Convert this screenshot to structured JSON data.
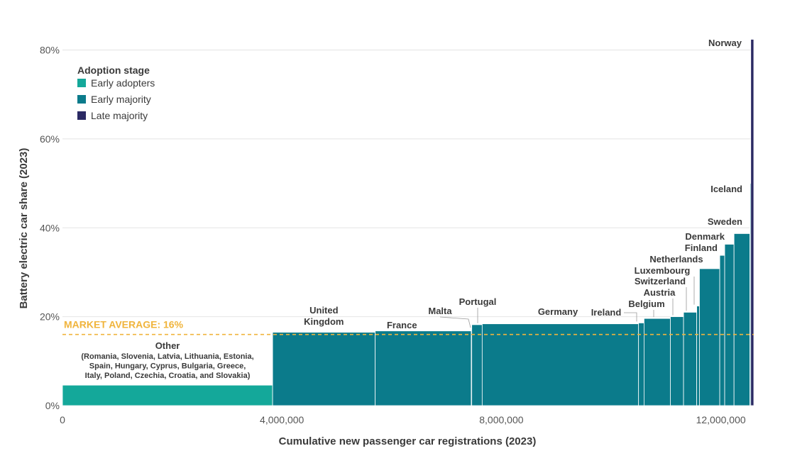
{
  "chart_data": {
    "type": "bar",
    "xlabel": "Cumulative new passenger car registrations (2023)",
    "ylabel": "Battery electric car share (2023)",
    "xlim": [
      0,
      12600000
    ],
    "ylim": [
      0,
      82
    ],
    "x_ticks": [
      {
        "value": 0,
        "label": "0"
      },
      {
        "value": 4000000,
        "label": "4,000,000"
      },
      {
        "value": 8000000,
        "label": "8,000,000"
      },
      {
        "value": 12000000,
        "label": "12,000,000"
      }
    ],
    "y_ticks": [
      {
        "value": 0,
        "label": "0%"
      },
      {
        "value": 20,
        "label": "20%"
      },
      {
        "value": 40,
        "label": "40%"
      },
      {
        "value": 60,
        "label": "60%"
      },
      {
        "value": 80,
        "label": "80%"
      }
    ],
    "grid": "horizontal",
    "legend": {
      "title": "Adoption stage",
      "position": "top-left",
      "entries": [
        {
          "key": "early_adopters",
          "label": "Early adopters",
          "color": "#14a89a"
        },
        {
          "key": "early_majority",
          "label": "Early majority",
          "color": "#0b7b8b"
        },
        {
          "key": "late_majority",
          "label": "Late majority",
          "color": "#2b2a64"
        }
      ]
    },
    "reference_line": {
      "label": "MARKET AVERAGE: 16%",
      "value": 16,
      "color": "#f0b43c"
    },
    "other_note": [
      "(Romania, Slovenia, Latvia, Lithuania, Estonia,",
      "Spain, Hungary, Cyprus, Bulgaria, Greece,",
      "Italy, Poland, Czechia, Croatia, and Slovakia)"
    ],
    "bars": [
      {
        "name": "Other",
        "x0": 0,
        "x1": 3830000,
        "value": 4.6,
        "stage": "early_adopters"
      },
      {
        "name": "United Kingdom",
        "x0": 3830000,
        "x1": 5700000,
        "value": 16.5,
        "stage": "early_majority"
      },
      {
        "name": "France",
        "x0": 5700000,
        "x1": 7450000,
        "value": 16.8,
        "stage": "early_majority"
      },
      {
        "name": "Malta",
        "x0": 7450000,
        "x1": 7460000,
        "value": 17.2,
        "stage": "early_majority"
      },
      {
        "name": "Portugal",
        "x0": 7460000,
        "x1": 7650000,
        "value": 18.2,
        "stage": "early_majority"
      },
      {
        "name": "Germany",
        "x0": 7650000,
        "x1": 10500000,
        "value": 18.4,
        "stage": "early_majority"
      },
      {
        "name": "Ireland",
        "x0": 10500000,
        "x1": 10600000,
        "value": 18.6,
        "stage": "early_majority"
      },
      {
        "name": "Belgium",
        "x0": 10600000,
        "x1": 11080000,
        "value": 19.6,
        "stage": "early_majority"
      },
      {
        "name": "Austria",
        "x0": 11080000,
        "x1": 11320000,
        "value": 20.0,
        "stage": "early_majority"
      },
      {
        "name": "Switzerland",
        "x0": 11320000,
        "x1": 11560000,
        "value": 21.0,
        "stage": "early_majority"
      },
      {
        "name": "Luxembourg",
        "x0": 11560000,
        "x1": 11610000,
        "value": 22.4,
        "stage": "early_majority"
      },
      {
        "name": "Netherlands",
        "x0": 11610000,
        "x1": 11980000,
        "value": 30.8,
        "stage": "early_majority"
      },
      {
        "name": "Finland",
        "x0": 11980000,
        "x1": 12070000,
        "value": 33.8,
        "stage": "early_majority"
      },
      {
        "name": "Denmark",
        "x0": 12070000,
        "x1": 12240000,
        "value": 36.3,
        "stage": "early_majority"
      },
      {
        "name": "Sweden",
        "x0": 12240000,
        "x1": 12530000,
        "value": 38.7,
        "stage": "early_majority"
      },
      {
        "name": "Iceland",
        "x0": 12530000,
        "x1": 12545000,
        "value": 50.0,
        "stage": "early_majority"
      },
      {
        "name": "Norway",
        "x0": 12545000,
        "x1": 12600000,
        "value": 82.4,
        "stage": "late_majority"
      }
    ]
  }
}
